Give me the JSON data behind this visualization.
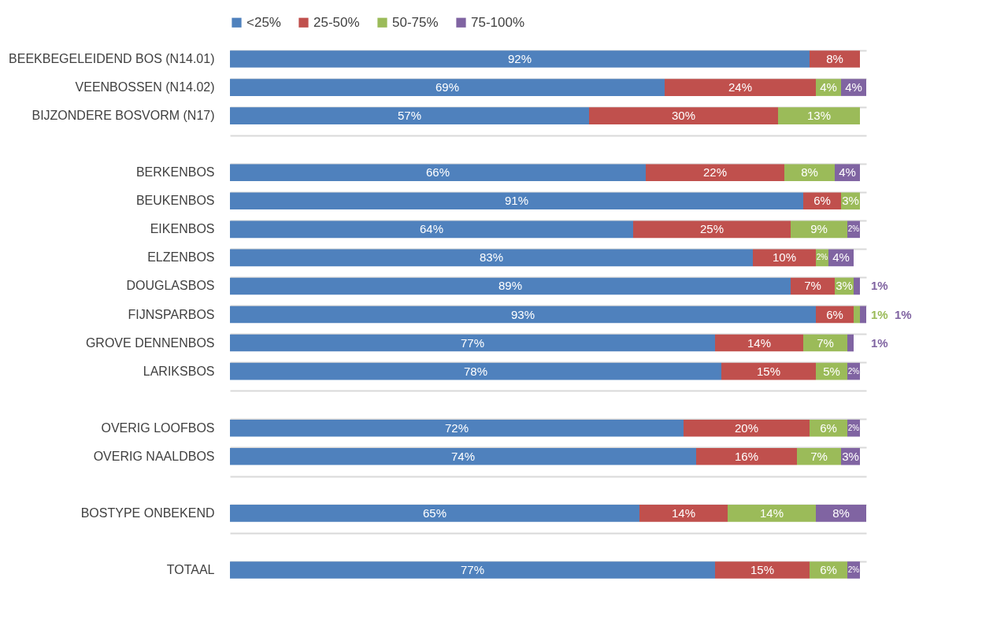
{
  "chart_data": {
    "type": "bar",
    "orientation": "horizontal",
    "stacked": true,
    "legend": "top",
    "grid": "y",
    "tick_labels": "y",
    "xlim": [
      0,
      101
    ],
    "categories": [
      "BEEKBEGELEIDEND BOS (N14.01)",
      "VEENBOSSEN (N14.02)",
      "BIJZONDERE BOSVORM (N17)",
      null,
      "BERKENBOS",
      "BEUKENBOS",
      "EIKENBOS",
      "ELZENBOS",
      "DOUGLASBOS",
      "FIJNSPARBOS",
      "GROVE DENNENBOS",
      "LARIKSBOS",
      null,
      "OVERIG LOOFBOS",
      "OVERIG NAALDBOS",
      null,
      "BOSTYPE ONBEKEND",
      null,
      "TOTAAL"
    ],
    "series": [
      {
        "name": "<25%",
        "color": "#4f81bd",
        "values": [
          92,
          69,
          57,
          null,
          66,
          91,
          64,
          83,
          89,
          93,
          77,
          78,
          null,
          72,
          74,
          null,
          65,
          null,
          77
        ],
        "value_labels": [
          "92%",
          "69%",
          "57%",
          null,
          "66%",
          "91%",
          "64%",
          "83%",
          "89%",
          "93%",
          "77%",
          "78%",
          null,
          "72%",
          "74%",
          null,
          "65%",
          null,
          "77%"
        ]
      },
      {
        "name": "25-50%",
        "color": "#c0504d",
        "values": [
          8,
          24,
          30,
          null,
          22,
          6,
          25,
          10,
          7,
          6,
          14,
          15,
          null,
          20,
          16,
          null,
          14,
          null,
          15
        ],
        "value_labels": [
          "8%",
          "24%",
          "30%",
          null,
          "22%",
          "6%",
          "25%",
          "10%",
          "7%",
          "6%",
          "14%",
          "15%",
          null,
          "20%",
          "16%",
          null,
          "14%",
          null,
          "15%"
        ]
      },
      {
        "name": "50-75%",
        "color": "#9bbb59",
        "values": [
          null,
          4,
          13,
          null,
          8,
          3,
          9,
          2,
          3,
          1,
          7,
          5,
          null,
          6,
          7,
          null,
          14,
          null,
          6
        ],
        "value_labels": [
          null,
          "4%",
          "13%",
          null,
          "8%",
          "3%",
          "9%",
          "2%",
          "3%",
          "1%",
          "7%",
          "5%",
          null,
          "6%",
          "7%",
          null,
          "14%",
          null,
          "6%"
        ]
      },
      {
        "name": "75-100%",
        "color": "#8064a2",
        "values": [
          null,
          4,
          null,
          null,
          4,
          null,
          2,
          4,
          1,
          1,
          1,
          2,
          null,
          2,
          3,
          null,
          8,
          null,
          2
        ],
        "value_labels": [
          null,
          "4%",
          null,
          null,
          "4%",
          null,
          "2%",
          "4%",
          "1%",
          "1%",
          "1%",
          "2%",
          null,
          "2%",
          "3%",
          null,
          "8%",
          null,
          "2%"
        ]
      }
    ]
  }
}
